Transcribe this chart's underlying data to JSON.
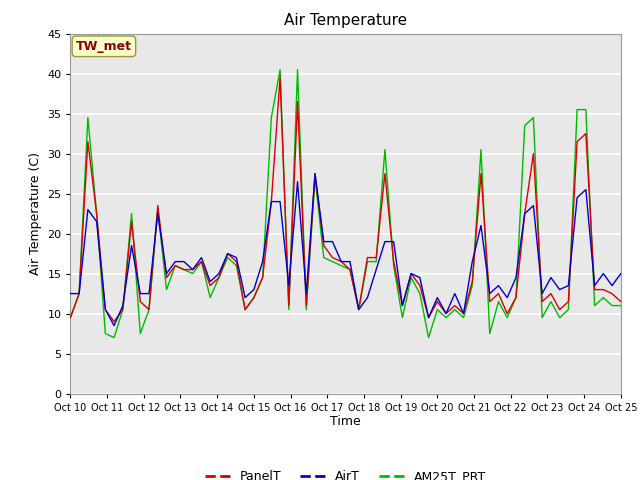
{
  "title": "Air Temperature",
  "xlabel": "Time",
  "ylabel": "Air Temperature (C)",
  "ylim": [
    0,
    45
  ],
  "yticks": [
    0,
    5,
    10,
    15,
    20,
    25,
    30,
    35,
    40,
    45
  ],
  "xtick_labels": [
    "Oct 10",
    "Oct 11",
    "Oct 12",
    "Oct 13",
    "Oct 14",
    "Oct 15",
    "Oct 16",
    "Oct 17",
    "Oct 18",
    "Oct 19",
    "Oct 20",
    "Oct 21",
    "Oct 22",
    "Oct 23",
    "Oct 24",
    "Oct 25"
  ],
  "annotation_text": "TW_met",
  "annotation_color": "#8B0000",
  "annotation_bg": "#FFFFCC",
  "annotation_edge": "#999933",
  "bg_color": "#E8E8E8",
  "plot_bg_light": "#F0F0F0",
  "legend_labels": [
    "PanelT",
    "AirT",
    "AM25T_PRT"
  ],
  "legend_colors": [
    "#DD0000",
    "#0000CC",
    "#00BB00"
  ],
  "line_width": 1.0,
  "series_PanelT": [
    9.5,
    12.5,
    31.5,
    22.5,
    10.5,
    9.0,
    10.5,
    21.5,
    11.5,
    10.5,
    23.5,
    14.5,
    16.0,
    15.5,
    15.5,
    16.5,
    13.5,
    14.5,
    17.5,
    16.5,
    10.5,
    12.0,
    14.5,
    24.0,
    39.5,
    11.0,
    36.5,
    11.0,
    27.5,
    18.5,
    17.0,
    16.5,
    15.5,
    10.5,
    17.0,
    17.0,
    27.5,
    16.5,
    11.0,
    15.0,
    13.5,
    9.5,
    11.5,
    10.0,
    11.0,
    10.0,
    14.0,
    27.5,
    11.5,
    12.5,
    10.0,
    12.0,
    22.5,
    30.0,
    11.5,
    12.5,
    10.5,
    11.5,
    31.5,
    32.5,
    13.0,
    13.0,
    12.5,
    11.5
  ],
  "series_AirT": [
    12.5,
    12.5,
    23.0,
    21.5,
    10.5,
    8.5,
    11.0,
    18.5,
    12.5,
    12.5,
    22.5,
    15.0,
    16.5,
    16.5,
    15.5,
    17.0,
    14.0,
    15.0,
    17.5,
    17.0,
    12.0,
    13.0,
    16.5,
    24.0,
    24.0,
    13.5,
    26.5,
    12.5,
    27.5,
    19.0,
    19.0,
    16.5,
    16.5,
    10.5,
    12.0,
    15.5,
    19.0,
    19.0,
    11.0,
    15.0,
    14.5,
    9.5,
    12.0,
    10.0,
    12.5,
    10.0,
    16.5,
    21.0,
    12.5,
    13.5,
    12.0,
    14.5,
    22.5,
    23.5,
    12.5,
    14.5,
    13.0,
    13.5,
    24.5,
    25.5,
    13.5,
    15.0,
    13.5,
    15.0
  ],
  "series_AM25T_PRT": [
    9.5,
    12.5,
    34.5,
    22.5,
    7.5,
    7.0,
    10.5,
    22.5,
    7.5,
    10.5,
    23.0,
    13.0,
    16.0,
    15.5,
    15.0,
    16.5,
    12.0,
    14.5,
    17.0,
    16.0,
    10.5,
    12.0,
    14.5,
    34.5,
    40.5,
    10.5,
    40.5,
    10.5,
    27.0,
    17.0,
    16.5,
    16.0,
    15.5,
    10.5,
    16.5,
    16.5,
    30.5,
    16.0,
    9.5,
    14.5,
    12.5,
    7.0,
    10.5,
    9.5,
    10.5,
    9.5,
    13.5,
    30.5,
    7.5,
    11.5,
    9.5,
    12.0,
    33.5,
    34.5,
    9.5,
    11.5,
    9.5,
    10.5,
    35.5,
    35.5,
    11.0,
    12.0,
    11.0,
    11.0
  ]
}
